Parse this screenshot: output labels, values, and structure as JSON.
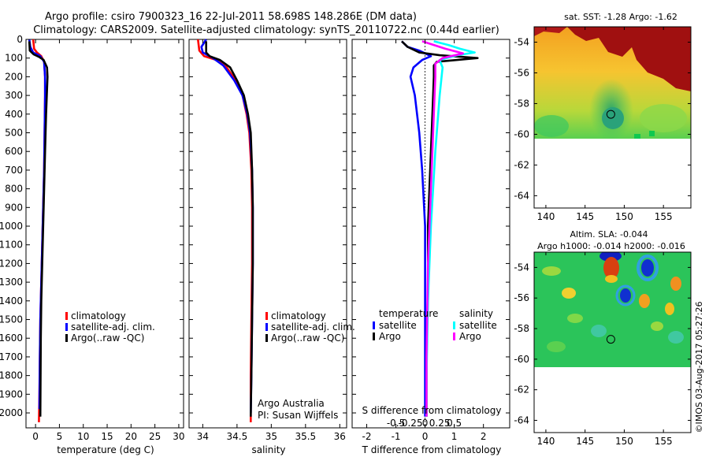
{
  "header": {
    "title_line1": "Argo profile: csiro 7900323_16 22-Jul-2011 58.698S 148.286E (DM data)",
    "title_line2": "Climatology: CARS2009. Satellite-adjusted climatology: synTS_20110722.nc (0.44d earlier)"
  },
  "colors": {
    "climatology": "#ff0000",
    "satellite": "#0000ff",
    "argo": "#000000",
    "sat_salinity": "#00ffff",
    "argo_salinity": "#ff00ff"
  },
  "chart_data": [
    {
      "type": "line",
      "xlabel": "temperature (deg C)",
      "ylabel": "",
      "xlim": [
        -2,
        31
      ],
      "ylim": [
        2080,
        0
      ],
      "x_ticks": [
        0,
        5,
        10,
        15,
        20,
        25,
        30
      ],
      "y_ticks": [
        0,
        100,
        200,
        300,
        400,
        500,
        600,
        700,
        800,
        900,
        1000,
        1100,
        1200,
        1300,
        1400,
        1500,
        1600,
        1700,
        1800,
        1900,
        2000
      ],
      "legend": [
        "climatology",
        "satellite-adj. clim.",
        "Argo(..raw -QC)"
      ],
      "series": [
        {
          "name": "climatology",
          "color": "#ff0000",
          "x": [
            -0.5,
            -0.3,
            0.3,
            1.2,
            1.8,
            2.0,
            2.0,
            1.9,
            1.8,
            1.6,
            1.4,
            1.2,
            1.0,
            0.9,
            0.8,
            0.7
          ],
          "y": [
            0,
            50,
            70,
            90,
            120,
            200,
            300,
            500,
            700,
            900,
            1100,
            1300,
            1500,
            1700,
            1900,
            2050
          ]
        },
        {
          "name": "satellite-adj. clim.",
          "color": "#0000ff",
          "x": [
            -1.3,
            -1.1,
            -0.5,
            1.0,
            1.8,
            2.0,
            2.0,
            1.9,
            1.8,
            1.6,
            1.4,
            1.2,
            1.0,
            0.9,
            0.8
          ],
          "y": [
            0,
            40,
            70,
            90,
            120,
            200,
            300,
            500,
            700,
            900,
            1100,
            1300,
            1500,
            1700,
            1980
          ]
        },
        {
          "name": "Argo(..raw -QC)",
          "color": "#000000",
          "x": [
            -1.3,
            -1.2,
            -0.4,
            0.8,
            1.7,
            2.4,
            2.5,
            2.2,
            2.0,
            1.8,
            1.6,
            1.4,
            1.2,
            1.1,
            1.0
          ],
          "y": [
            10,
            60,
            80,
            95,
            110,
            150,
            200,
            400,
            600,
            800,
            1000,
            1200,
            1400,
            1600,
            2020
          ]
        }
      ]
    },
    {
      "type": "line",
      "xlabel": "salinity",
      "ylabel": "",
      "xlim": [
        33.8,
        36.1
      ],
      "ylim": [
        2080,
        0
      ],
      "x_ticks": [
        34,
        34.5,
        35,
        35.5,
        36
      ],
      "legend": [
        "climatology",
        "satellite-adj. clim.",
        "Argo(..raw -QC)"
      ],
      "annotation": [
        "Argo Australia",
        "PI: Susan Wijffels"
      ],
      "series": [
        {
          "name": "climatology",
          "color": "#ff0000",
          "x": [
            33.93,
            33.95,
            34.02,
            34.2,
            34.35,
            34.48,
            34.58,
            34.64,
            34.68,
            34.71,
            34.72,
            34.72,
            34.71,
            34.7,
            34.7
          ],
          "y": [
            0,
            60,
            90,
            110,
            150,
            220,
            300,
            400,
            500,
            700,
            900,
            1200,
            1500,
            1800,
            2050
          ]
        },
        {
          "name": "satellite-adj. clim.",
          "color": "#0000ff",
          "x": [
            34.05,
            33.98,
            34.0,
            34.15,
            34.3,
            34.46,
            34.58,
            34.65,
            34.69,
            34.72,
            34.73,
            34.73,
            34.72,
            34.71,
            34.7
          ],
          "y": [
            0,
            40,
            70,
            100,
            140,
            220,
            300,
            400,
            500,
            700,
            900,
            1200,
            1500,
            1800,
            2000
          ]
        },
        {
          "name": "Argo(..raw -QC)",
          "color": "#000000",
          "x": [
            34.05,
            34.05,
            34.1,
            34.25,
            34.4,
            34.5,
            34.6,
            34.66,
            34.7,
            34.72,
            34.73,
            34.73,
            34.72,
            34.71,
            34.7
          ],
          "y": [
            10,
            70,
            90,
            110,
            150,
            220,
            300,
            400,
            500,
            700,
            900,
            1200,
            1500,
            1800,
            2020
          ]
        }
      ]
    },
    {
      "type": "line",
      "xlabel": "T difference from climatology",
      "xlabel2": "S difference from climatology",
      "xlim": [
        -2.5,
        2.9
      ],
      "ylim": [
        2080,
        0
      ],
      "x_ticks": [
        -2,
        -1,
        0,
        1,
        2
      ],
      "s_ticks": [
        "-0.5",
        "-0.25",
        "0",
        "0.25",
        "0.5"
      ],
      "legend_headers": [
        "temperature",
        "salinity"
      ],
      "legend": [
        "satellite",
        "Argo",
        "satellite",
        "Argo"
      ],
      "series": [
        {
          "name": "satellite",
          "color": "#0000ff",
          "x": [
            -0.8,
            -0.6,
            -0.2,
            0.2,
            -0.1,
            -0.4,
            -0.5,
            -0.35,
            -0.2,
            -0.1,
            0,
            0,
            0,
            0,
            0,
            0
          ],
          "y": [
            10,
            40,
            60,
            90,
            110,
            150,
            200,
            300,
            500,
            700,
            1000,
            1200,
            1500,
            1800,
            2000,
            2020
          ]
        },
        {
          "name": "Argo",
          "color": "#000000",
          "x": [
            -0.8,
            -0.6,
            -0.2,
            0.5,
            1.8,
            0.4,
            0.3,
            0.3,
            0.25,
            0.2,
            0.15,
            0.1,
            0.1,
            0.05,
            0.05
          ],
          "y": [
            10,
            40,
            70,
            85,
            100,
            120,
            140,
            200,
            400,
            600,
            800,
            1000,
            1300,
            1700,
            2020
          ]
        },
        {
          "name": "satellite",
          "color": "#00ffff",
          "x": [
            0.3,
            0.8,
            1.2,
            1.7,
            1.1,
            0.5,
            0.6,
            0.5,
            0.35,
            0.2,
            0.1,
            0.05,
            0.05
          ],
          "y": [
            10,
            30,
            50,
            70,
            85,
            110,
            150,
            300,
            600,
            1000,
            1400,
            1800,
            2020
          ]
        },
        {
          "name": "Argo",
          "color": "#ff00ff",
          "x": [
            -0.1,
            0.3,
            0.7,
            1.3,
            0.6,
            0.35,
            0.35,
            0.3,
            0.2,
            0.1,
            0.05,
            0.05
          ],
          "y": [
            10,
            30,
            50,
            75,
            100,
            130,
            200,
            400,
            800,
            1200,
            1700,
            2020
          ]
        }
      ]
    },
    {
      "type": "heatmap",
      "title": "sat. SST: -1.28 Argo: -1.62",
      "xlim": [
        138.5,
        158.5
      ],
      "ylim": [
        -64.8,
        -53
      ],
      "x_ticks": [
        140,
        145,
        150,
        155
      ],
      "y_ticks": [
        -54,
        -56,
        -58,
        -60,
        -62,
        -64
      ],
      "data_extent_lat": [
        -60,
        -53
      ],
      "marker": {
        "lon": 148.286,
        "lat": -58.698
      }
    },
    {
      "type": "heatmap",
      "title": "Altim. SLA: -0.044",
      "title2": "Argo h1000: -0.014 h2000: -0.016",
      "xlim": [
        138.5,
        158.5
      ],
      "ylim": [
        -64.8,
        -53
      ],
      "x_ticks": [
        140,
        145,
        150,
        155
      ],
      "y_ticks": [
        -54,
        -56,
        -58,
        -60,
        -62,
        -64
      ],
      "data_extent_lat": [
        -60,
        -53
      ],
      "marker": {
        "lon": 148.286,
        "lat": -58.698
      }
    }
  ],
  "footer": {
    "stamp": "©IMOS 03-Aug-2017 05:27:26"
  }
}
